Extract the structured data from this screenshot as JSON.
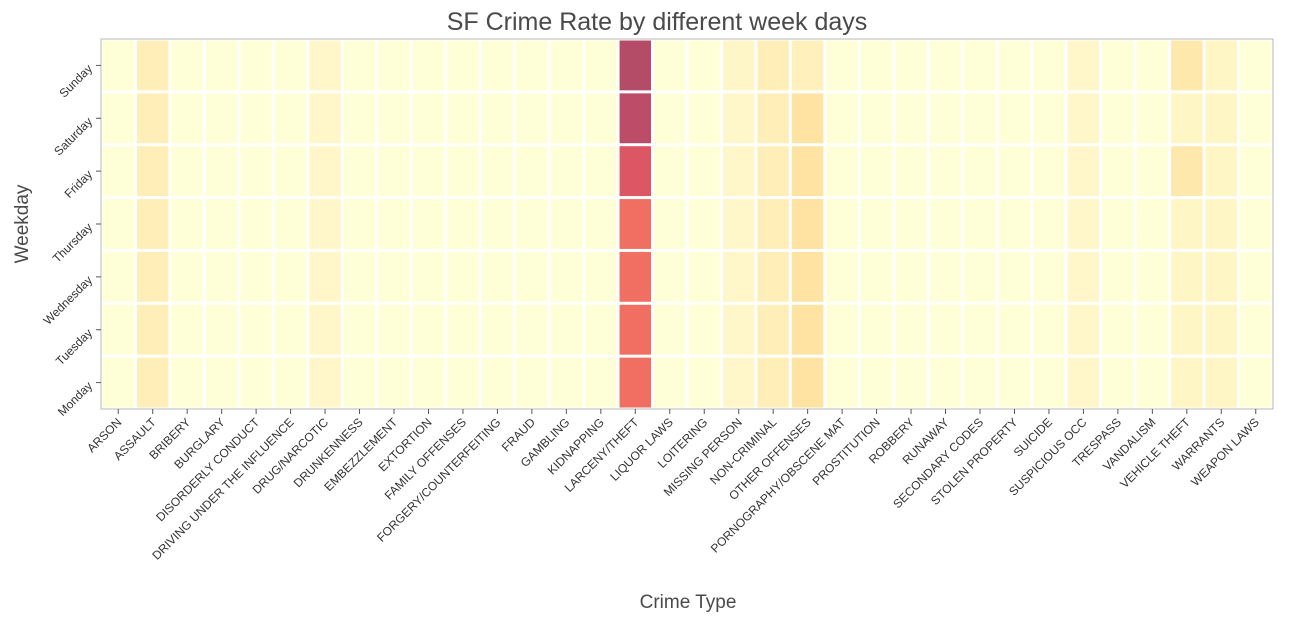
{
  "chart_data": {
    "type": "heatmap",
    "title": "SF Crime Rate by different week days",
    "xlabel": "Crime Type",
    "ylabel": "Weekday",
    "x": [
      "ARSON",
      "ASSAULT",
      "BRIBERY",
      "BURGLARY",
      "DISORDERLY CONDUCT",
      "DRIVING UNDER THE INFLUENCE",
      "DRUG/NARCOTIC",
      "DRUNKENNESS",
      "EMBEZZLEMENT",
      "EXTORTION",
      "FAMILY OFFENSES",
      "FORGERY/COUNTERFEITING",
      "FRAUD",
      "GAMBLING",
      "KIDNAPPING",
      "LARCENY/THEFT",
      "LIQUOR LAWS",
      "LOITERING",
      "MISSING PERSON",
      "NON-CRIMINAL",
      "OTHER OFFENSES",
      "PORNOGRAPHY/OBSCENE MAT",
      "PROSTITUTION",
      "ROBBERY",
      "RUNAWAY",
      "SECONDARY CODES",
      "STOLEN PROPERTY",
      "SUICIDE",
      "SUSPICIOUS OCC",
      "TRESPASS",
      "VANDALISM",
      "VEHICLE THEFT",
      "WARRANTS",
      "WEAPON LAWS"
    ],
    "y": [
      "Sunday",
      "Saturday",
      "Friday",
      "Thursday",
      "Wednesday",
      "Tuesday",
      "Monday"
    ],
    "values": [
      [
        0.0,
        0.22,
        0.0,
        0.0,
        0.0,
        0.0,
        0.1,
        0.0,
        0.0,
        0.0,
        0.0,
        0.0,
        0.0,
        0.0,
        0.0,
        0.95,
        0.0,
        0.0,
        0.11,
        0.22,
        0.19,
        0.0,
        0.0,
        0.0,
        0.0,
        0.0,
        0.0,
        0.0,
        0.1,
        0.0,
        0.0,
        0.28,
        0.13,
        0.0
      ],
      [
        0.0,
        0.22,
        0.0,
        0.0,
        0.0,
        0.0,
        0.1,
        0.0,
        0.0,
        0.0,
        0.0,
        0.0,
        0.0,
        0.0,
        0.0,
        0.92,
        0.0,
        0.0,
        0.1,
        0.22,
        0.34,
        0.0,
        0.0,
        0.0,
        0.0,
        0.0,
        0.0,
        0.0,
        0.1,
        0.0,
        0.0,
        0.13,
        0.13,
        0.0
      ],
      [
        0.0,
        0.22,
        0.0,
        0.0,
        0.0,
        0.0,
        0.1,
        0.0,
        0.0,
        0.0,
        0.0,
        0.0,
        0.0,
        0.0,
        0.0,
        0.78,
        0.0,
        0.0,
        0.1,
        0.22,
        0.34,
        0.0,
        0.0,
        0.0,
        0.0,
        0.0,
        0.0,
        0.0,
        0.1,
        0.0,
        0.0,
        0.28,
        0.13,
        0.0
      ],
      [
        0.0,
        0.22,
        0.0,
        0.0,
        0.0,
        0.0,
        0.1,
        0.0,
        0.0,
        0.0,
        0.0,
        0.0,
        0.0,
        0.0,
        0.0,
        0.66,
        0.0,
        0.0,
        0.1,
        0.22,
        0.34,
        0.0,
        0.0,
        0.0,
        0.0,
        0.0,
        0.0,
        0.0,
        0.1,
        0.0,
        0.0,
        0.13,
        0.13,
        0.0
      ],
      [
        0.0,
        0.22,
        0.0,
        0.0,
        0.0,
        0.0,
        0.1,
        0.0,
        0.0,
        0.0,
        0.0,
        0.0,
        0.0,
        0.0,
        0.0,
        0.66,
        0.0,
        0.0,
        0.1,
        0.22,
        0.34,
        0.0,
        0.0,
        0.0,
        0.0,
        0.0,
        0.0,
        0.0,
        0.1,
        0.0,
        0.0,
        0.13,
        0.13,
        0.0
      ],
      [
        0.0,
        0.22,
        0.0,
        0.0,
        0.0,
        0.0,
        0.1,
        0.0,
        0.0,
        0.0,
        0.0,
        0.0,
        0.0,
        0.0,
        0.0,
        0.66,
        0.0,
        0.0,
        0.1,
        0.22,
        0.34,
        0.0,
        0.0,
        0.0,
        0.0,
        0.0,
        0.0,
        0.0,
        0.1,
        0.0,
        0.0,
        0.13,
        0.13,
        0.0
      ],
      [
        0.0,
        0.22,
        0.0,
        0.0,
        0.0,
        0.0,
        0.1,
        0.0,
        0.0,
        0.0,
        0.0,
        0.0,
        0.0,
        0.0,
        0.0,
        0.66,
        0.0,
        0.0,
        0.1,
        0.22,
        0.34,
        0.0,
        0.0,
        0.0,
        0.0,
        0.0,
        0.0,
        0.0,
        0.1,
        0.0,
        0.0,
        0.13,
        0.13,
        0.0
      ]
    ],
    "colormap": "YlOrRd",
    "colorscale": [
      "#ffffd7",
      "#fff2c0",
      "#ffe4a3",
      "#ffc98b",
      "#f06a60",
      "#d24c66",
      "#a84c67"
    ]
  }
}
